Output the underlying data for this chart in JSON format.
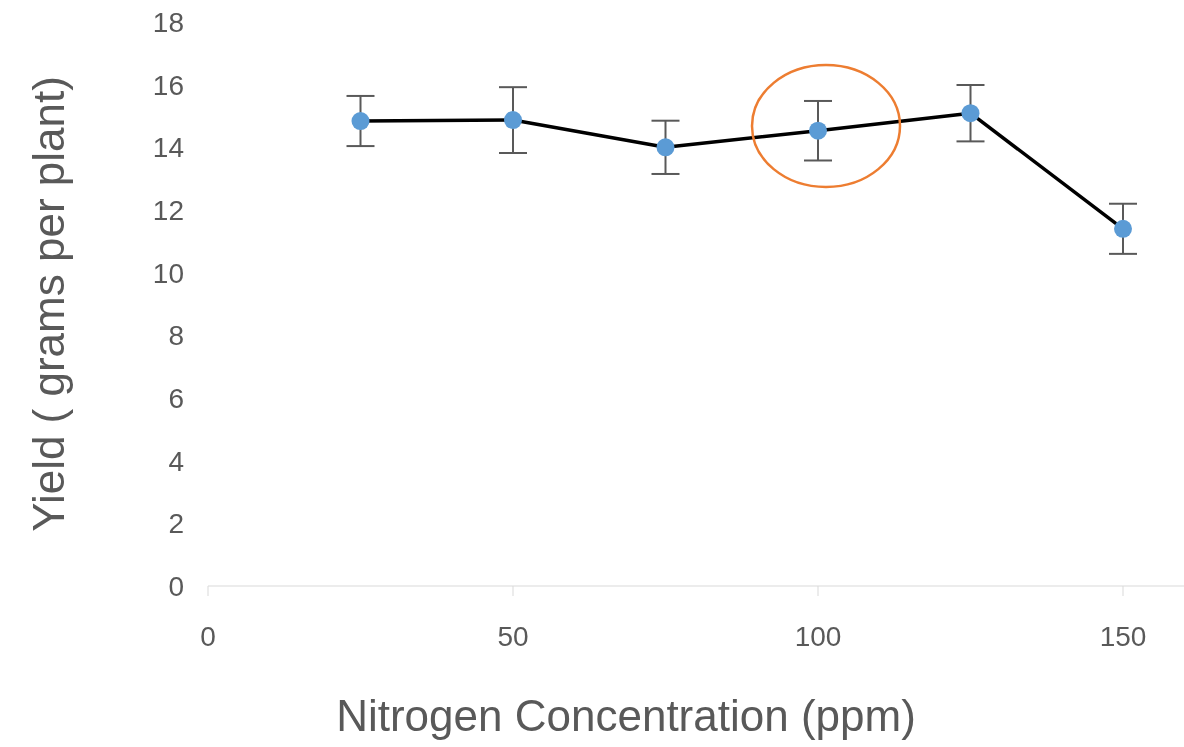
{
  "chart_data": {
    "type": "line",
    "xlabel": "Nitrogen Concentration (ppm)",
    "ylabel": "Yield ( grams per plant)",
    "x": [
      25,
      50,
      75,
      100,
      125,
      150
    ],
    "series": [
      {
        "color": "#5b9bd5",
        "values": [
          14.84,
          14.87,
          14.0,
          14.53,
          15.09,
          11.4
        ],
        "errors": [
          0.8,
          1.05,
          0.85,
          0.95,
          0.9,
          0.8
        ]
      }
    ],
    "xlim": [
      0,
      160
    ],
    "xticks": [
      0,
      50,
      100,
      150
    ],
    "ylim": [
      0,
      18
    ],
    "yticks": [
      0,
      2,
      4,
      6,
      8,
      10,
      12,
      14,
      16,
      18
    ],
    "grid": false,
    "legend": false,
    "marker": "circle",
    "line_style": "solid"
  }
}
